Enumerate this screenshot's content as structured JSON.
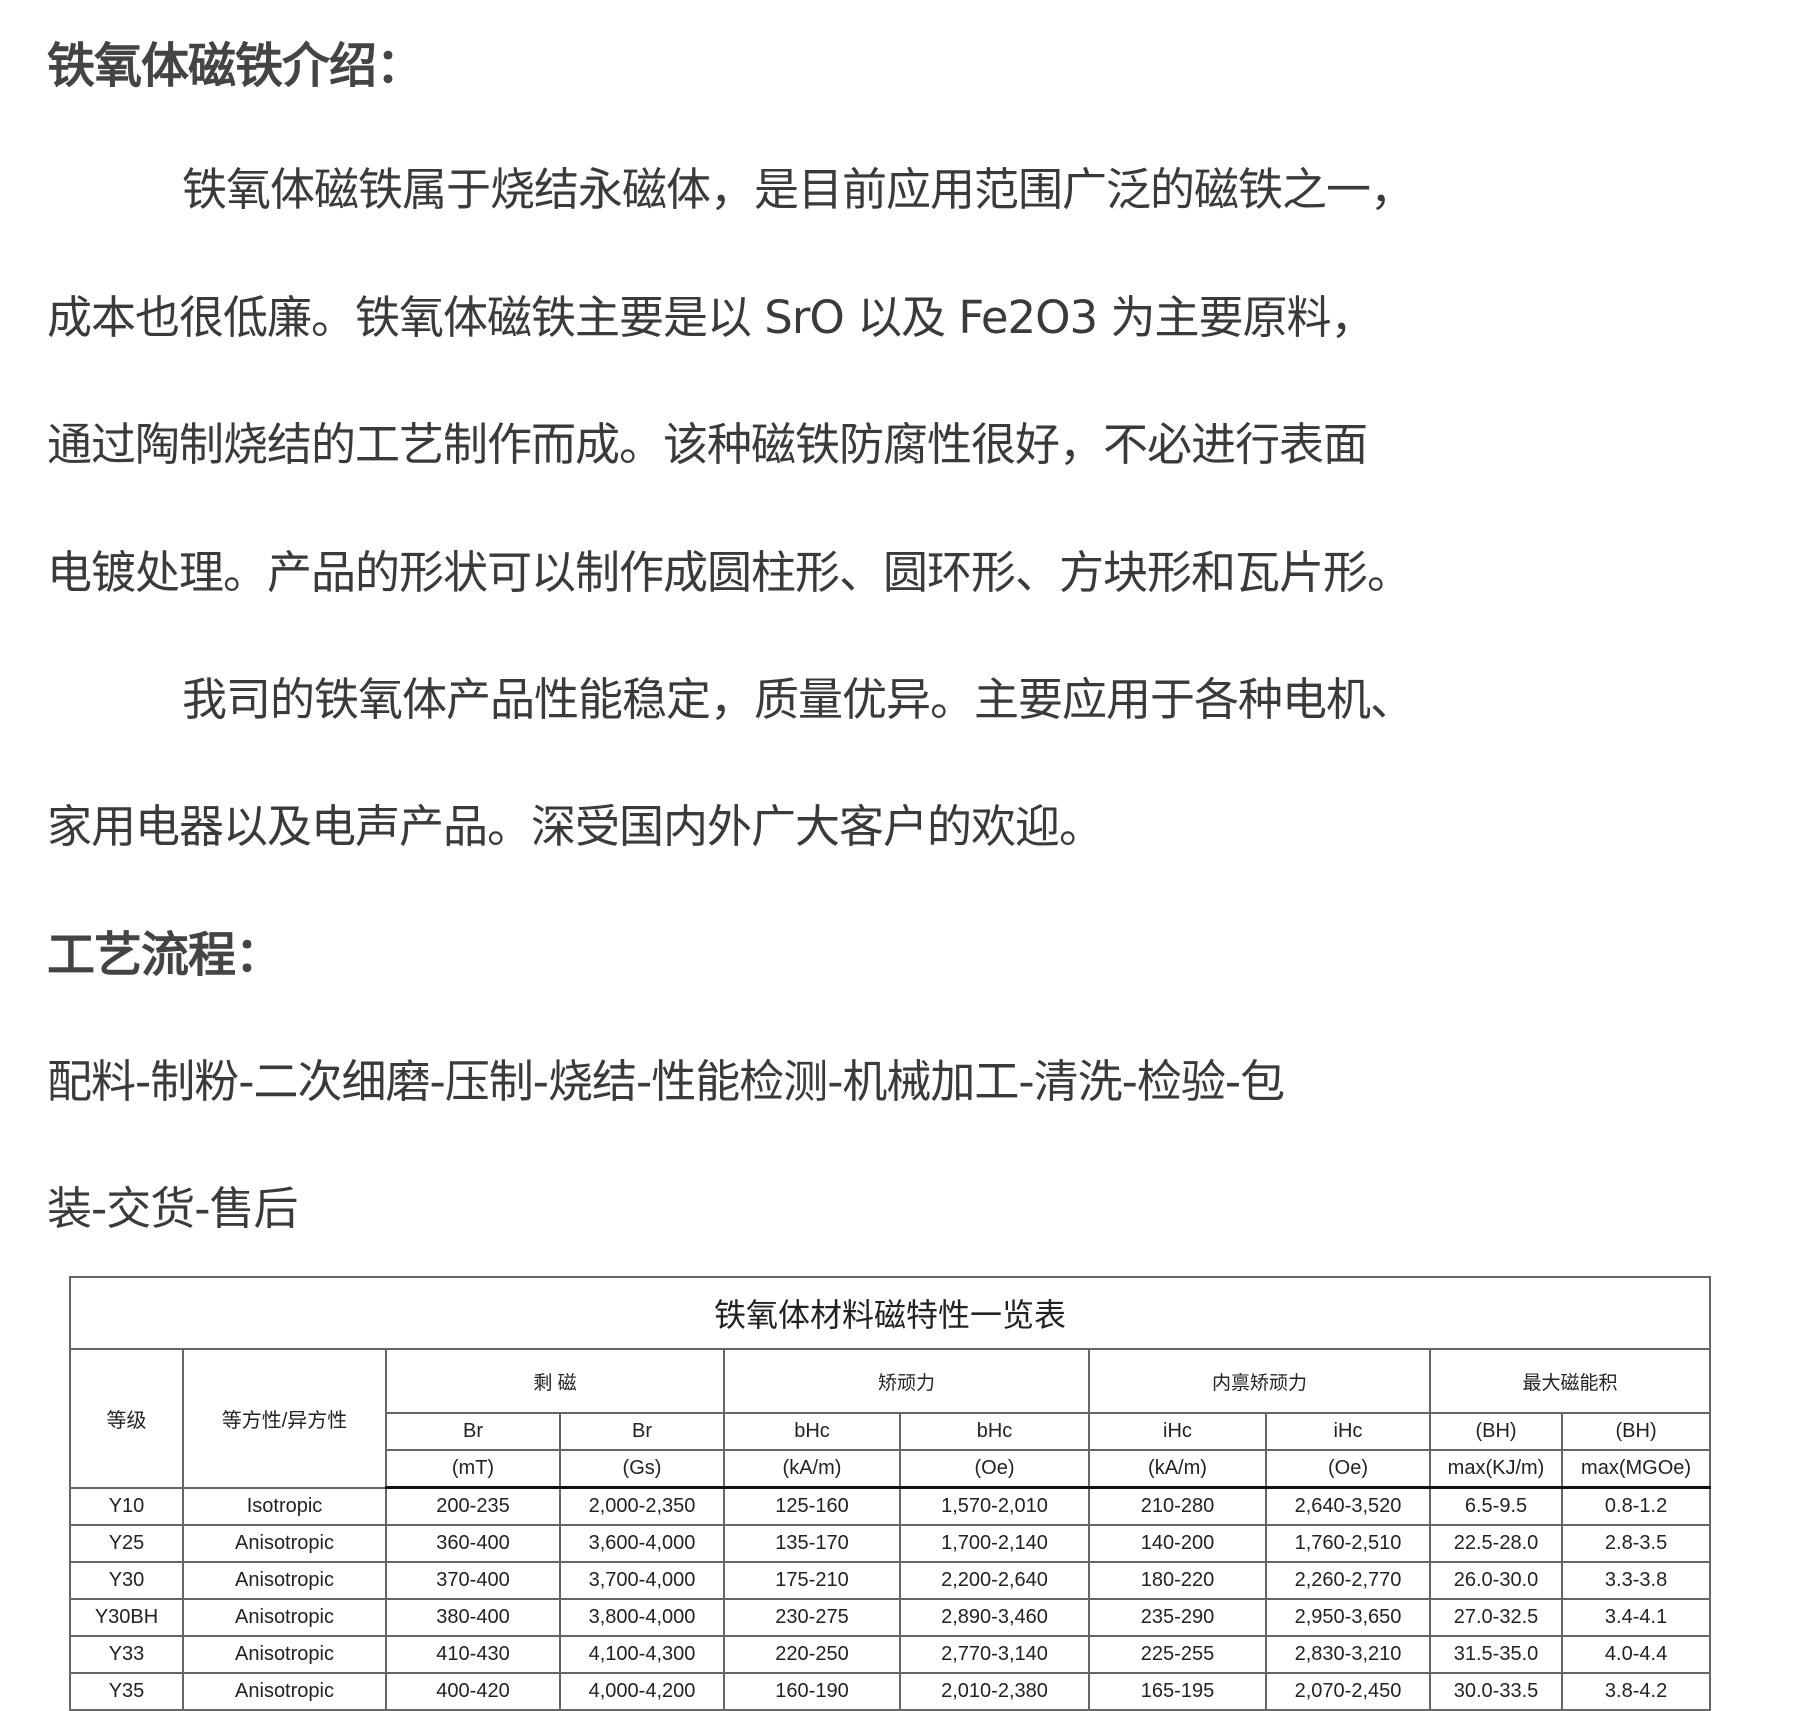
{
  "intro": {
    "heading": "铁氧体磁铁介绍：",
    "paragraph1": [
      "铁氧体磁铁属于烧结永磁体，是目前应用范围广泛的磁铁之一，",
      "成本也很低廉。铁氧体磁铁主要是以 SrO 以及 Fe2O3 为主要原料，",
      "通过陶制烧结的工艺制作而成。该种磁铁防腐性很好，不必进行表面",
      "电镀处理。产品的形状可以制作成圆柱形、圆环形、方块形和瓦片形。"
    ],
    "paragraph2": [
      "我司的铁氧体产品性能稳定，质量优异。主要应用于各种电机、",
      "家用电器以及电声产品。深受国内外广大客户的欢迎。"
    ]
  },
  "process": {
    "heading": "工艺流程：",
    "lines": [
      "配料-制粉-二次细磨-压制-烧结-性能检测-机械加工-清洗-检验-包",
      "装-交货-售后"
    ]
  },
  "table": {
    "title": "铁氧体材料磁特性一览表",
    "grade_header": "等级",
    "type_header": "等方性/异方性",
    "groups": [
      "剩  磁",
      "矫顽力",
      "内禀矫顽力",
      "最大磁能积"
    ],
    "sub1": [
      "Br",
      "Br",
      "bHc",
      "bHc",
      "iHc",
      "iHc",
      "(BH)",
      "(BH)"
    ],
    "sub2": [
      "(mT)",
      "(Gs)",
      "(kA/m)",
      "(Oe)",
      "(kA/m)",
      "(Oe)",
      "max(KJ/m)",
      "max(MGOe)"
    ],
    "rows": [
      [
        "Y10",
        "Isotropic",
        "200-235",
        "2,000-2,350",
        "125-160",
        "1,570-2,010",
        "210-280",
        "2,640-3,520",
        "6.5-9.5",
        "0.8-1.2"
      ],
      [
        "Y25",
        "Anisotropic",
        "360-400",
        "3,600-4,000",
        "135-170",
        "1,700-2,140",
        "140-200",
        "1,760-2,510",
        "22.5-28.0",
        "2.8-3.5"
      ],
      [
        "Y30",
        "Anisotropic",
        "370-400",
        "3,700-4,000",
        "175-210",
        "2,200-2,640",
        "180-220",
        "2,260-2,770",
        "26.0-30.0",
        "3.3-3.8"
      ],
      [
        "Y30BH",
        "Anisotropic",
        "380-400",
        "3,800-4,000",
        "230-275",
        "2,890-3,460",
        "235-290",
        "2,950-3,650",
        "27.0-32.5",
        "3.4-4.1"
      ],
      [
        "Y33",
        "Anisotropic",
        "410-430",
        "4,100-4,300",
        "220-250",
        "2,770-3,140",
        "225-255",
        "2,830-3,210",
        "31.5-35.0",
        "4.0-4.4"
      ],
      [
        "Y35",
        "Anisotropic",
        "400-420",
        "4,000-4,200",
        "160-190",
        "2,010-2,380",
        "165-195",
        "2,070-2,450",
        "30.0-33.5",
        "3.8-4.2"
      ]
    ]
  }
}
